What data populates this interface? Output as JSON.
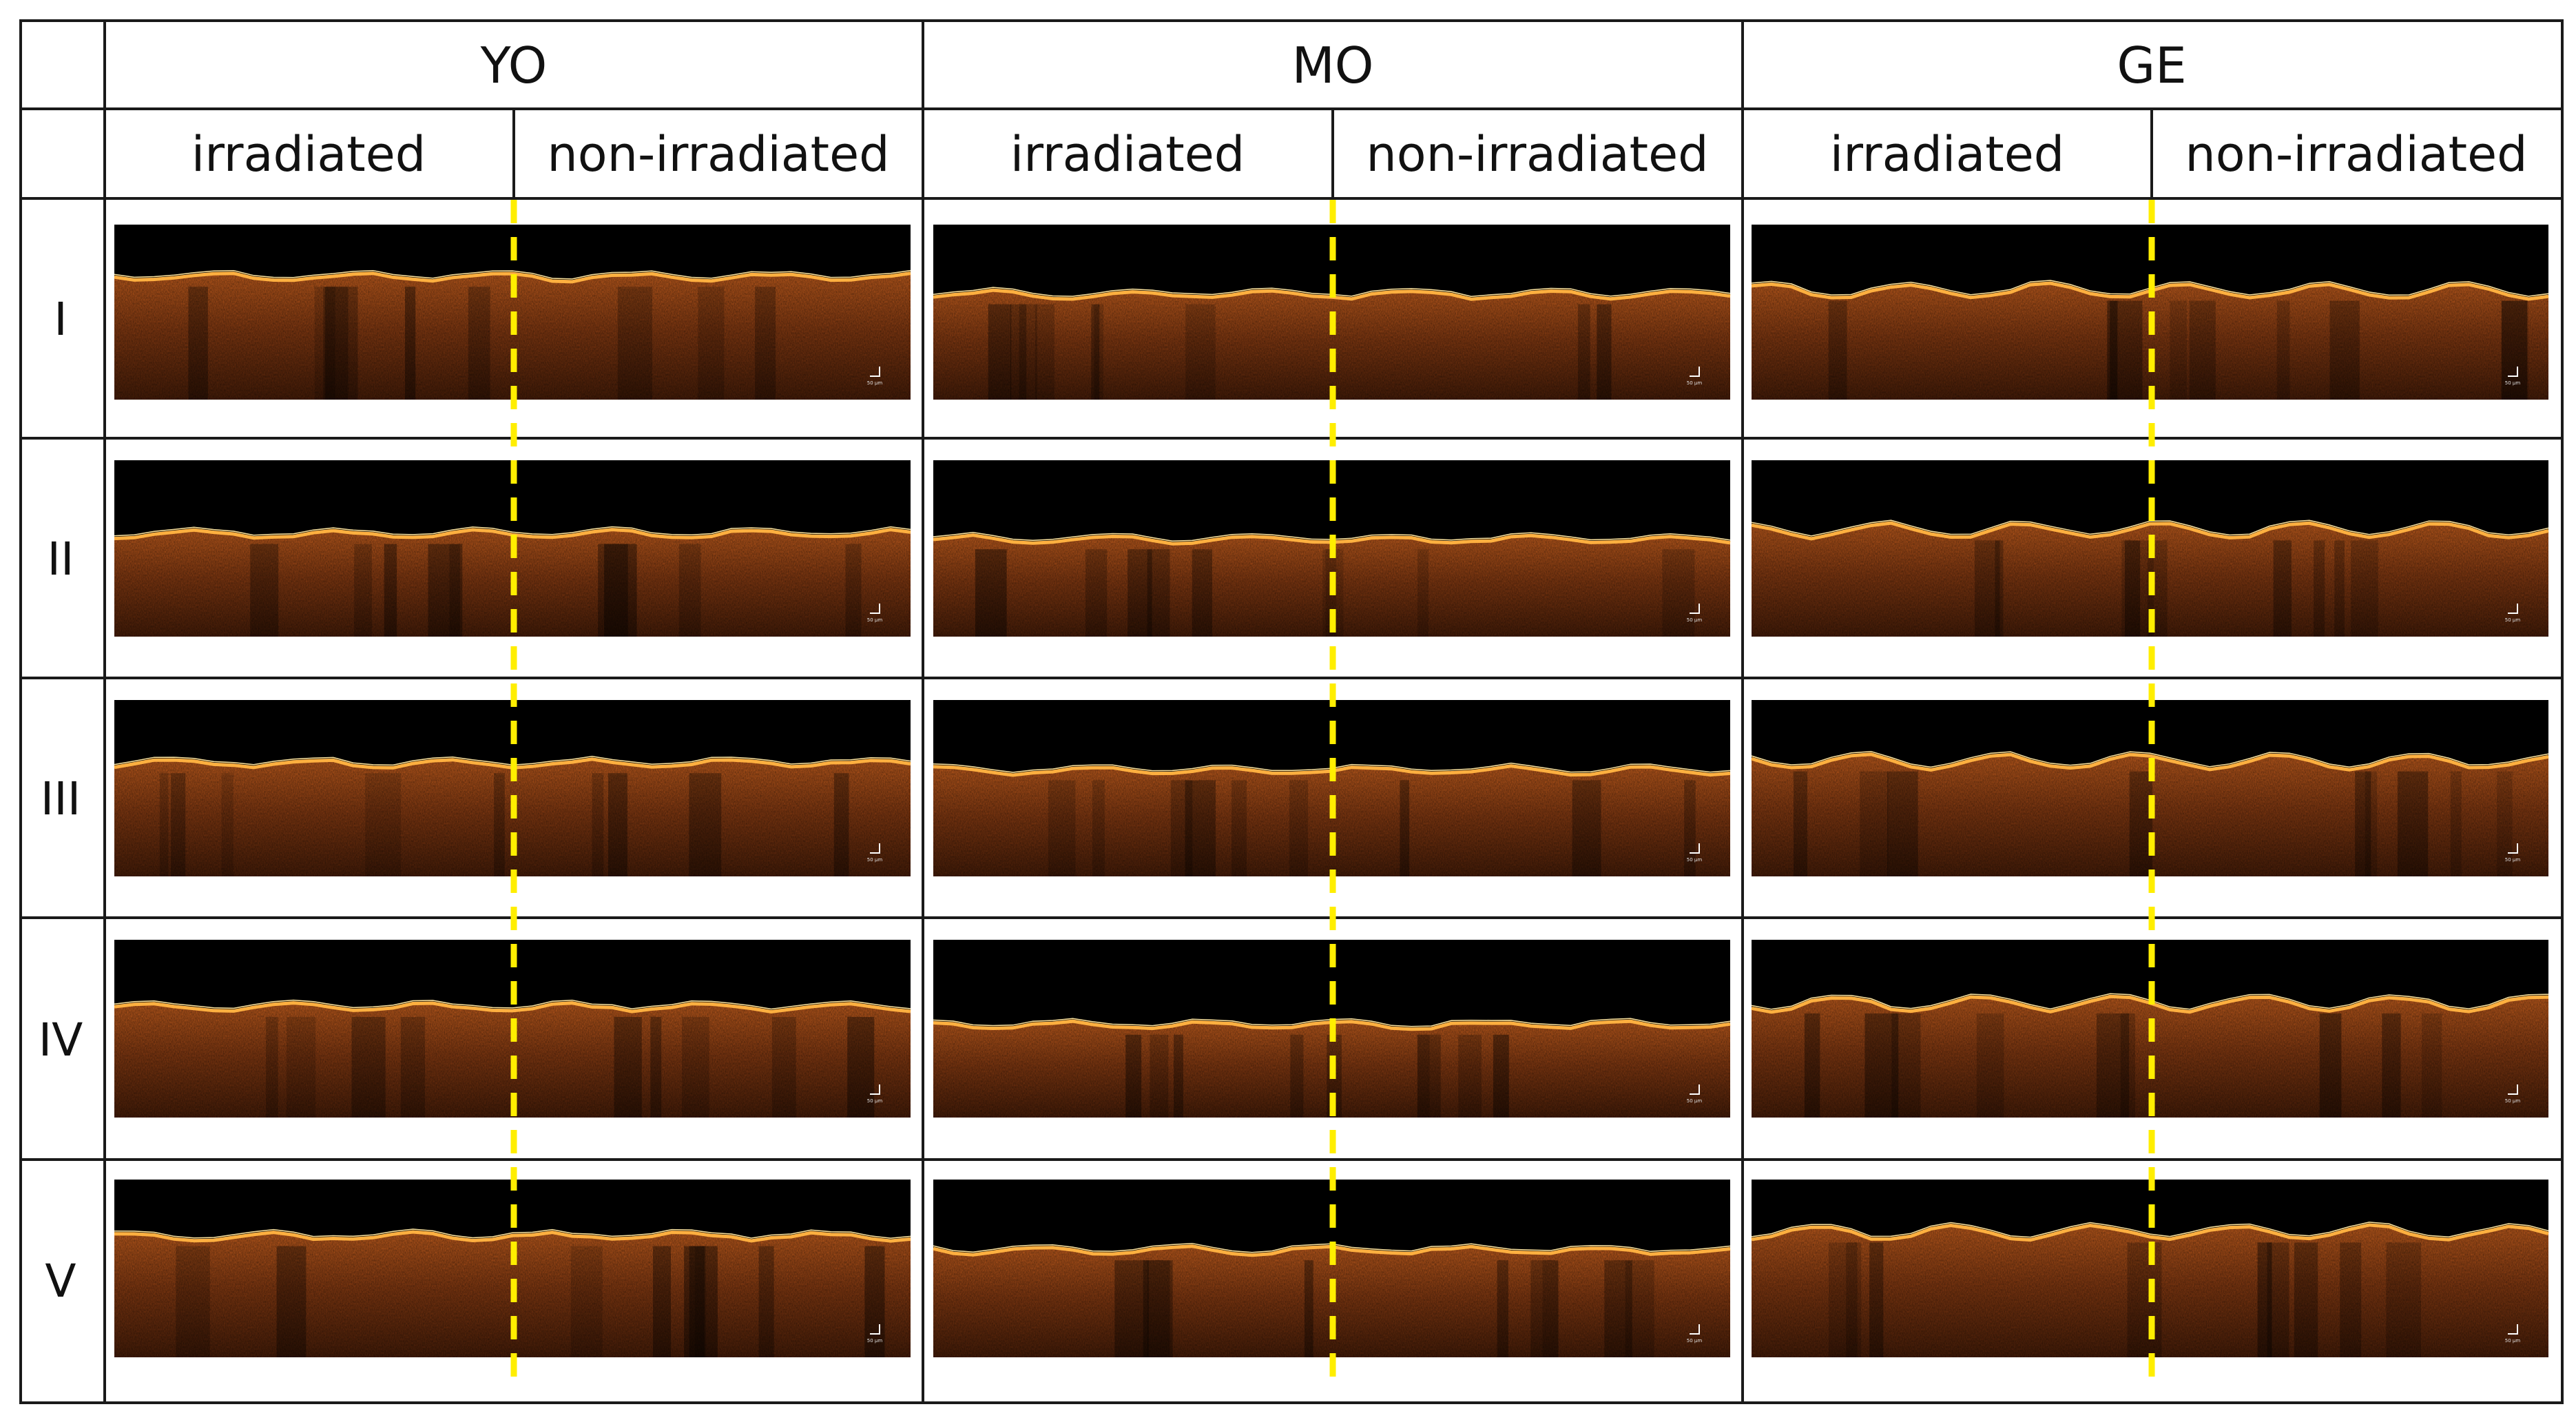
{
  "figure": {
    "groups": [
      {
        "label": "YO"
      },
      {
        "label": "MO"
      },
      {
        "label": "GE"
      }
    ],
    "conditions": [
      "irradiated",
      "non-irradiated"
    ],
    "rows": [
      {
        "label": "I"
      },
      {
        "label": "II"
      },
      {
        "label": "III"
      },
      {
        "label": "IV"
      },
      {
        "label": "V"
      }
    ],
    "scale_bar_label": "50 µm",
    "colors": {
      "grid": "#1a1a1a",
      "divider": "#ffee00",
      "tissue": "#b8521a",
      "tissue_surface": "#ffb040",
      "background": "#000000"
    }
  }
}
